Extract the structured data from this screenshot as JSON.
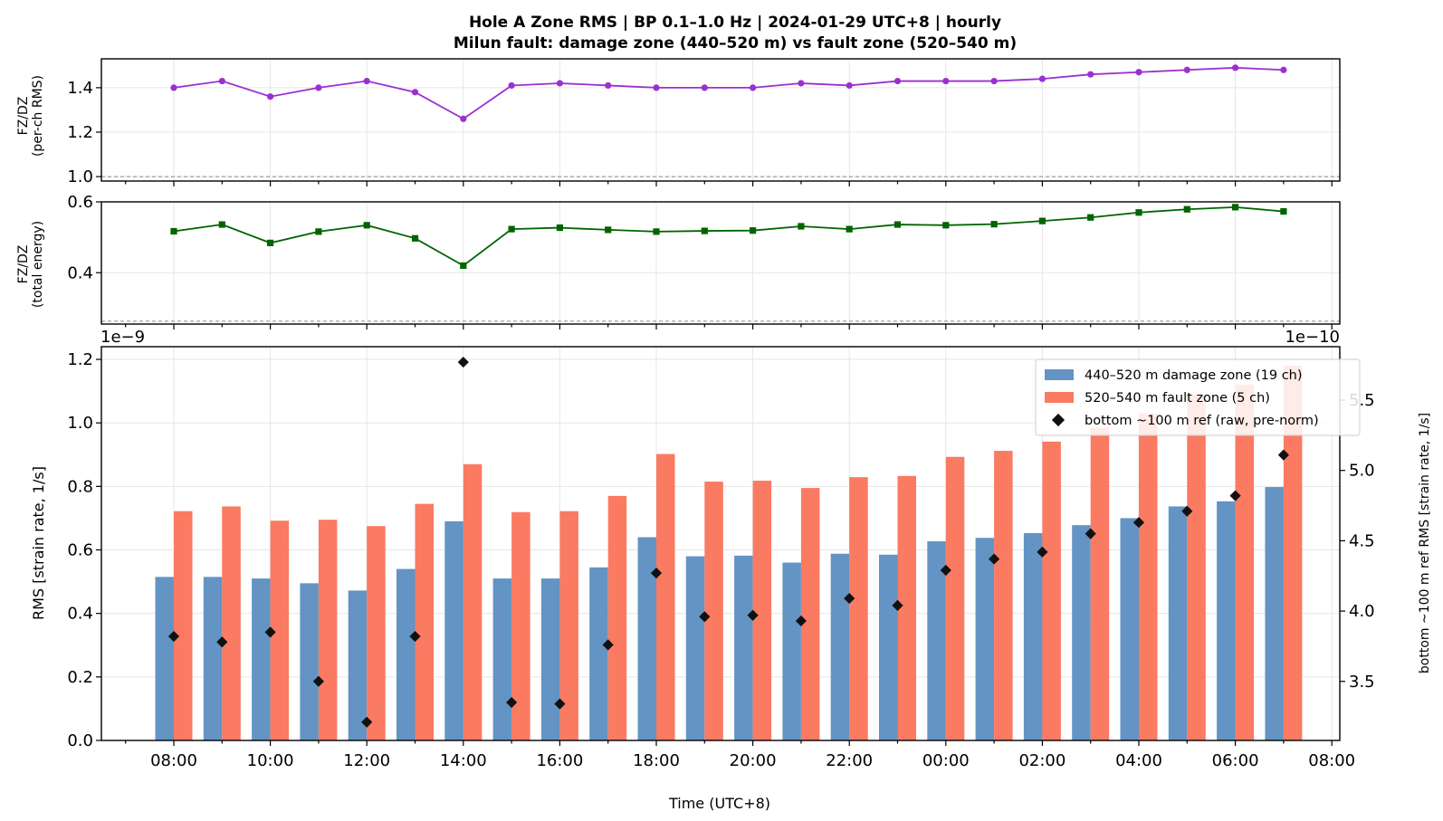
{
  "chart_data": [
    {
      "type": "line",
      "title_line1": "Hole A Zone RMS  |  BP 0.1–1.0 Hz  |  2024-01-29 UTC+8  |  hourly",
      "title_line2": "Milun fault: damage zone (440–520 m) vs fault zone (520–540 m)",
      "ylabel_line1": "FZ/DZ",
      "ylabel_line2": "(per-ch RMS)",
      "ylim": [
        0.98,
        1.53
      ],
      "yticks": [
        "1.0",
        "1.2",
        "1.4"
      ],
      "reference_line": 1.0,
      "marker": "circle",
      "color": "#9b30d0",
      "x": [
        "08:00",
        "09:00",
        "10:00",
        "11:00",
        "12:00",
        "13:00",
        "14:00",
        "15:00",
        "16:00",
        "17:00",
        "18:00",
        "19:00",
        "20:00",
        "21:00",
        "22:00",
        "23:00",
        "00:00",
        "01:00",
        "02:00",
        "03:00",
        "04:00",
        "05:00",
        "06:00",
        "07:00"
      ],
      "values": [
        1.4,
        1.43,
        1.36,
        1.4,
        1.43,
        1.38,
        1.26,
        1.41,
        1.42,
        1.41,
        1.4,
        1.4,
        1.4,
        1.42,
        1.41,
        1.43,
        1.43,
        1.43,
        1.44,
        1.46,
        1.47,
        1.48,
        1.49,
        1.48
      ]
    },
    {
      "type": "line",
      "ylabel_line1": "FZ/DZ",
      "ylabel_line2": "(total energy)",
      "ylim": [
        0.255,
        0.6
      ],
      "yticks": [
        "0.4",
        "0.6"
      ],
      "reference_line": 0.263,
      "marker": "square",
      "color": "#006400",
      "x": [
        "08:00",
        "09:00",
        "10:00",
        "11:00",
        "12:00",
        "13:00",
        "14:00",
        "15:00",
        "16:00",
        "17:00",
        "18:00",
        "19:00",
        "20:00",
        "21:00",
        "22:00",
        "23:00",
        "00:00",
        "01:00",
        "02:00",
        "03:00",
        "04:00",
        "05:00",
        "06:00",
        "07:00"
      ],
      "values": [
        0.517,
        0.536,
        0.484,
        0.516,
        0.534,
        0.497,
        0.42,
        0.523,
        0.527,
        0.521,
        0.516,
        0.518,
        0.519,
        0.531,
        0.523,
        0.536,
        0.534,
        0.537,
        0.546,
        0.556,
        0.57,
        0.579,
        0.585,
        0.573
      ]
    },
    {
      "type": "bar",
      "offset_left": "1e−9",
      "offset_right": "1e−10",
      "xlabel": "Time (UTC+8)",
      "ylabel": "RMS  [strain rate, 1/s]",
      "ylabel_right": "bottom ~100 m ref RMS  [strain rate, 1/s]",
      "ylim": [
        0,
        1.24
      ],
      "ylim_right": [
        3.08,
        5.88
      ],
      "yticks": [
        "0.0",
        "0.2",
        "0.4",
        "0.6",
        "0.8",
        "1.0",
        "1.2"
      ],
      "yticks_right": [
        "3.5",
        "4.0",
        "4.5",
        "5.0",
        "5.5"
      ],
      "xticks": [
        "08:00",
        "10:00",
        "12:00",
        "14:00",
        "16:00",
        "18:00",
        "20:00",
        "22:00",
        "00:00",
        "02:00",
        "04:00",
        "06:00",
        "08:00"
      ],
      "categories": [
        "08:00",
        "09:00",
        "10:00",
        "11:00",
        "12:00",
        "13:00",
        "14:00",
        "15:00",
        "16:00",
        "17:00",
        "18:00",
        "19:00",
        "20:00",
        "21:00",
        "22:00",
        "23:00",
        "00:00",
        "01:00",
        "02:00",
        "03:00",
        "04:00",
        "05:00",
        "06:00",
        "07:00"
      ],
      "series": [
        {
          "name": "440–520 m  damage zone (19 ch)",
          "color": "#6394c4",
          "values": [
            0.515,
            0.515,
            0.51,
            0.495,
            0.472,
            0.54,
            0.69,
            0.51,
            0.51,
            0.545,
            0.64,
            0.58,
            0.582,
            0.56,
            0.588,
            0.585,
            0.627,
            0.638,
            0.653,
            0.678,
            0.7,
            0.737,
            0.753,
            0.798
          ]
        },
        {
          "name": "520–540 m  fault zone (5 ch)",
          "color": "#fa7a62",
          "values": [
            0.722,
            0.737,
            0.692,
            0.695,
            0.675,
            0.745,
            0.87,
            0.719,
            0.722,
            0.77,
            0.902,
            0.815,
            0.818,
            0.795,
            0.829,
            0.833,
            0.893,
            0.912,
            0.941,
            0.985,
            1.03,
            1.09,
            1.12,
            1.18
          ]
        },
        {
          "name": "bottom ~100 m ref (raw, pre-norm)",
          "color": "#111111",
          "axis": "right",
          "values": [
            3.82,
            3.78,
            3.85,
            3.5,
            3.21,
            3.82,
            5.77,
            3.35,
            3.34,
            3.76,
            4.27,
            3.96,
            3.97,
            3.93,
            4.09,
            4.04,
            4.29,
            4.37,
            4.42,
            4.55,
            4.63,
            4.71,
            4.82,
            5.11
          ]
        }
      ]
    }
  ]
}
